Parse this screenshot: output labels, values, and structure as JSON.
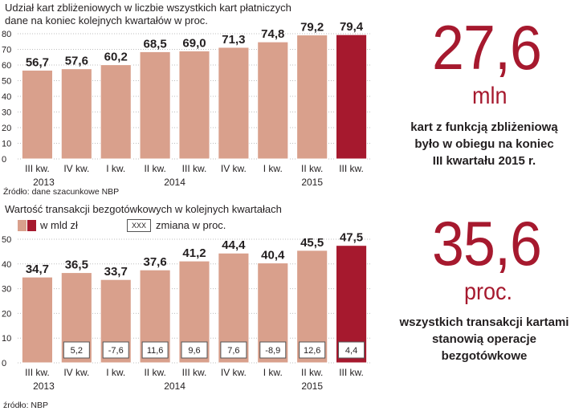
{
  "colors": {
    "bar": "#d9a08c",
    "bar_highlight": "#a6192e",
    "bar_border": "#ffffff",
    "grid": "#bdbdbd",
    "accent": "#a6192e"
  },
  "chart_data": [
    {
      "type": "bar",
      "title": "Udział kart zbliżeniowych w liczbie wszystkich kart płatniczych",
      "subtitle": "dane na koniec kolejnych kwartałów w proc.",
      "categories": [
        "III kw.",
        "IV kw.",
        "I kw.",
        "II kw.",
        "III kw.",
        "IV kw.",
        "I kw.",
        "II kw.",
        "III kw."
      ],
      "year_labels": [
        "2013",
        "2014",
        "2015"
      ],
      "values": [
        56.7,
        57.6,
        60.2,
        68.5,
        69.0,
        71.3,
        74.8,
        79.2,
        79.4
      ],
      "value_labels": [
        "56,7",
        "57,6",
        "60,2",
        "68,5",
        "69,0",
        "71,3",
        "74,8",
        "79,2",
        "79,4"
      ],
      "highlight_index": 8,
      "ylim": [
        0,
        80
      ],
      "yticks": [
        0,
        10,
        20,
        30,
        40,
        50,
        60,
        70,
        80
      ],
      "grid": true,
      "source": "Źródło: dane szacunkowe NBP"
    },
    {
      "type": "bar",
      "title": "Wartość transakcji bezgotówkowych w kolejnych kwartałach",
      "legend": {
        "bars_label": "w mld zł",
        "box_sample": "XXX",
        "box_label": "zmiana w proc."
      },
      "categories": [
        "III kw.",
        "IV kw.",
        "I kw.",
        "II kw.",
        "III kw.",
        "IV kw.",
        "I kw.",
        "II kw.",
        "III kw."
      ],
      "year_labels": [
        "2013",
        "2014",
        "2015"
      ],
      "values": [
        34.7,
        36.5,
        33.7,
        37.6,
        41.2,
        44.4,
        40.4,
        45.5,
        47.5
      ],
      "value_labels": [
        "34,7",
        "36,5",
        "33,7",
        "37,6",
        "41,2",
        "44,4",
        "40,4",
        "45,5",
        "47,5"
      ],
      "changes": [
        "",
        "5,2",
        "-7,6",
        "11,6",
        "9,6",
        "7,6",
        "-8,9",
        "12,6",
        "4,4"
      ],
      "highlight_index": 8,
      "ylim": [
        0,
        50
      ],
      "yticks": [
        0,
        10,
        20,
        30,
        40,
        50
      ],
      "grid": true,
      "source": "źródło: NBP"
    }
  ],
  "facts": [
    {
      "value": "27,6",
      "unit": "mln",
      "text": [
        "kart z funkcją zbliżeniową",
        "było w obiegu na koniec",
        "III kwartału 2015 r."
      ]
    },
    {
      "value": "35,6",
      "unit": "proc.",
      "text": [
        "wszystkich transakcji kartami",
        "stanowią operacje",
        "bezgotówkowe"
      ]
    }
  ]
}
